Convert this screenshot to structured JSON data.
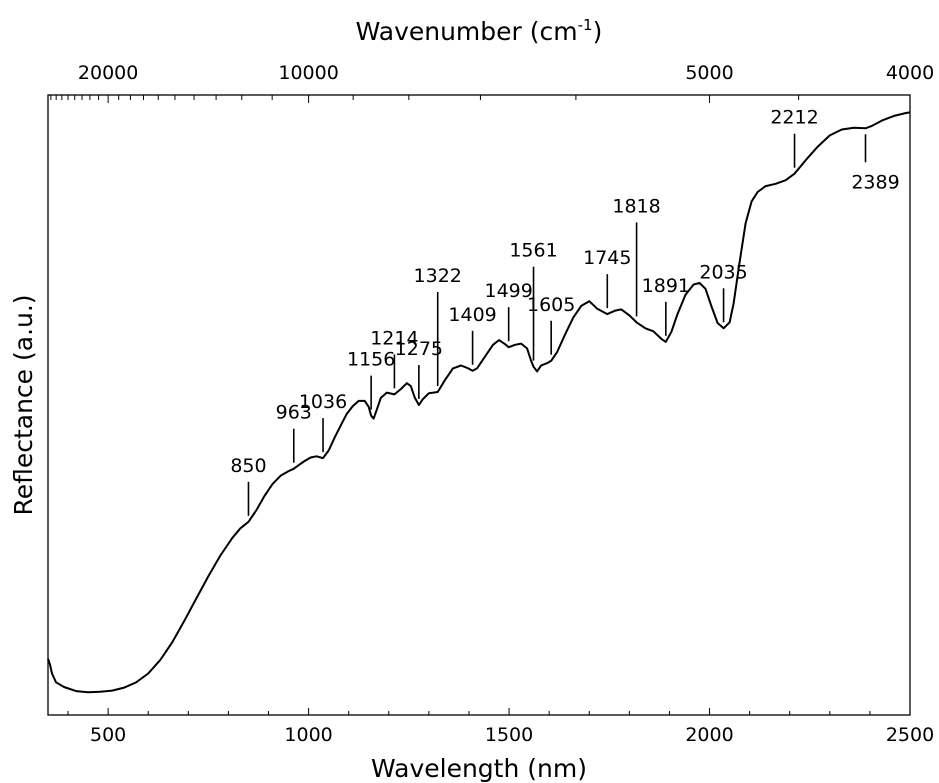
{
  "chart_data": {
    "type": "line",
    "xlabel": "Wavelength (nm)",
    "ylabel": "Reflectance (a.u.)",
    "top_xlabel": "Wavenumber (cm",
    "top_xlabel_sup": "-1",
    "top_xlabel_close": ")",
    "xlim": [
      350,
      2500
    ],
    "ylim": [
      0,
      1
    ],
    "y_units": "arbitrary",
    "grid": false,
    "x_ticks": [
      {
        "value": 500,
        "label": "500"
      },
      {
        "value": 1000,
        "label": "1000"
      },
      {
        "value": 1500,
        "label": "1500"
      },
      {
        "value": 2000,
        "label": "2000"
      },
      {
        "value": 2500,
        "label": "2500"
      }
    ],
    "top_ticks": [
      {
        "wavenumber": 20000,
        "label": "20000"
      },
      {
        "wavenumber": 10000,
        "label": "10000"
      },
      {
        "wavenumber": 5000,
        "label": "5000"
      },
      {
        "wavenumber": 4000,
        "label": "4000"
      }
    ],
    "top_minor_wavenumbers": [
      28000,
      27000,
      26000,
      25000,
      24000,
      23000,
      22000,
      21000,
      19000,
      18000,
      17000,
      16000,
      15000,
      14000,
      13000,
      12000,
      11000,
      9000,
      8000,
      7000,
      6000,
      4500
    ],
    "series": [
      {
        "points": [
          [
            350,
            0.07
          ],
          [
            355,
            0.06
          ],
          [
            360,
            0.045
          ],
          [
            370,
            0.03
          ],
          [
            390,
            0.022
          ],
          [
            420,
            0.015
          ],
          [
            450,
            0.013
          ],
          [
            480,
            0.014
          ],
          [
            510,
            0.016
          ],
          [
            540,
            0.021
          ],
          [
            570,
            0.03
          ],
          [
            600,
            0.045
          ],
          [
            630,
            0.068
          ],
          [
            660,
            0.098
          ],
          [
            690,
            0.134
          ],
          [
            720,
            0.172
          ],
          [
            750,
            0.21
          ],
          [
            780,
            0.245
          ],
          [
            810,
            0.275
          ],
          [
            830,
            0.291
          ],
          [
            850,
            0.302
          ],
          [
            870,
            0.322
          ],
          [
            890,
            0.346
          ],
          [
            910,
            0.366
          ],
          [
            930,
            0.38
          ],
          [
            950,
            0.388
          ],
          [
            963,
            0.392
          ],
          [
            975,
            0.398
          ],
          [
            990,
            0.405
          ],
          [
            1005,
            0.411
          ],
          [
            1020,
            0.413
          ],
          [
            1036,
            0.41
          ],
          [
            1050,
            0.423
          ],
          [
            1065,
            0.445
          ],
          [
            1080,
            0.465
          ],
          [
            1095,
            0.485
          ],
          [
            1110,
            0.498
          ],
          [
            1125,
            0.507
          ],
          [
            1140,
            0.507
          ],
          [
            1150,
            0.497
          ],
          [
            1156,
            0.482
          ],
          [
            1162,
            0.477
          ],
          [
            1170,
            0.492
          ],
          [
            1180,
            0.512
          ],
          [
            1195,
            0.521
          ],
          [
            1214,
            0.518
          ],
          [
            1230,
            0.527
          ],
          [
            1245,
            0.537
          ],
          [
            1255,
            0.532
          ],
          [
            1265,
            0.512
          ],
          [
            1275,
            0.5
          ],
          [
            1285,
            0.51
          ],
          [
            1300,
            0.52
          ],
          [
            1322,
            0.522
          ],
          [
            1340,
            0.542
          ],
          [
            1360,
            0.562
          ],
          [
            1380,
            0.567
          ],
          [
            1395,
            0.563
          ],
          [
            1409,
            0.558
          ],
          [
            1420,
            0.562
          ],
          [
            1440,
            0.582
          ],
          [
            1460,
            0.602
          ],
          [
            1475,
            0.61
          ],
          [
            1490,
            0.603
          ],
          [
            1499,
            0.598
          ],
          [
            1515,
            0.602
          ],
          [
            1530,
            0.604
          ],
          [
            1545,
            0.596
          ],
          [
            1555,
            0.575
          ],
          [
            1561,
            0.565
          ],
          [
            1570,
            0.557
          ],
          [
            1580,
            0.567
          ],
          [
            1595,
            0.571
          ],
          [
            1605,
            0.575
          ],
          [
            1620,
            0.59
          ],
          [
            1640,
            0.62
          ],
          [
            1660,
            0.648
          ],
          [
            1680,
            0.668
          ],
          [
            1700,
            0.676
          ],
          [
            1720,
            0.663
          ],
          [
            1745,
            0.654
          ],
          [
            1765,
            0.66
          ],
          [
            1780,
            0.662
          ],
          [
            1800,
            0.652
          ],
          [
            1818,
            0.64
          ],
          [
            1840,
            0.63
          ],
          [
            1860,
            0.625
          ],
          [
            1880,
            0.612
          ],
          [
            1891,
            0.607
          ],
          [
            1905,
            0.624
          ],
          [
            1920,
            0.654
          ],
          [
            1940,
            0.687
          ],
          [
            1960,
            0.704
          ],
          [
            1975,
            0.707
          ],
          [
            1990,
            0.697
          ],
          [
            2005,
            0.667
          ],
          [
            2020,
            0.639
          ],
          [
            2035,
            0.63
          ],
          [
            2050,
            0.64
          ],
          [
            2060,
            0.672
          ],
          [
            2075,
            0.742
          ],
          [
            2090,
            0.808
          ],
          [
            2105,
            0.845
          ],
          [
            2120,
            0.861
          ],
          [
            2140,
            0.871
          ],
          [
            2165,
            0.875
          ],
          [
            2190,
            0.881
          ],
          [
            2212,
            0.892
          ],
          [
            2240,
            0.915
          ],
          [
            2270,
            0.938
          ],
          [
            2300,
            0.957
          ],
          [
            2330,
            0.967
          ],
          [
            2360,
            0.97
          ],
          [
            2389,
            0.969
          ],
          [
            2405,
            0.973
          ],
          [
            2430,
            0.982
          ],
          [
            2460,
            0.99
          ],
          [
            2490,
            0.995
          ],
          [
            2500,
            0.996
          ]
        ]
      }
    ],
    "annotations": [
      {
        "label": "850",
        "x": 850
      },
      {
        "label": "963",
        "x": 963
      },
      {
        "label": "1036",
        "x": 1036
      },
      {
        "label": "1156",
        "x": 1156
      },
      {
        "label": "1214",
        "x": 1214
      },
      {
        "label": "1275",
        "x": 1275
      },
      {
        "label": "1322",
        "x": 1322
      },
      {
        "label": "1409",
        "x": 1409
      },
      {
        "label": "1499",
        "x": 1499
      },
      {
        "label": "1561",
        "x": 1561
      },
      {
        "label": "1605",
        "x": 1605
      },
      {
        "label": "1745",
        "x": 1745
      },
      {
        "label": "1818",
        "x": 1818
      },
      {
        "label": "1891",
        "x": 1891
      },
      {
        "label": "2035",
        "x": 2035
      },
      {
        "label": "2212",
        "x": 2212
      },
      {
        "label": "2389",
        "x": 2389,
        "position": "below"
      }
    ]
  }
}
